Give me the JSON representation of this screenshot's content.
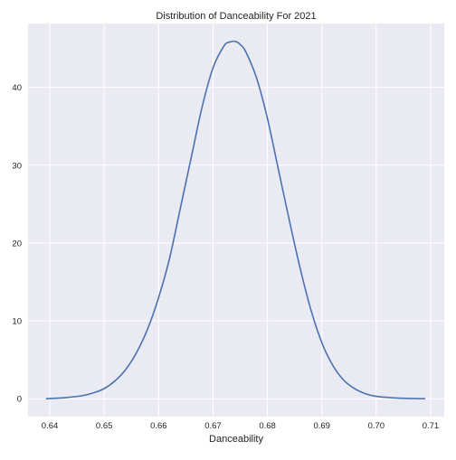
{
  "chart_data": {
    "type": "line",
    "title": "Distribution of Danceability For 2021",
    "xlabel": "Danceability",
    "ylabel": "",
    "xlim": [
      0.636,
      0.7125
    ],
    "ylim": [
      -2.3,
      48.2
    ],
    "x_ticks": [
      "0.64",
      "0.65",
      "0.66",
      "0.67",
      "0.68",
      "0.69",
      "0.70",
      "0.71"
    ],
    "y_ticks": [
      "0",
      "10",
      "20",
      "30",
      "40"
    ],
    "grid": true,
    "legend": "none",
    "colors": {
      "background": "#eaeaf2",
      "grid": "#ffffff",
      "line": "#4c72b0"
    },
    "series": [
      {
        "x": [
          0.6393,
          0.643,
          0.646,
          0.648,
          0.65,
          0.652,
          0.654,
          0.656,
          0.658,
          0.66,
          0.662,
          0.664,
          0.666,
          0.668,
          0.67,
          0.672,
          0.673,
          0.6741,
          0.675,
          0.676,
          0.678,
          0.68,
          0.682,
          0.684,
          0.686,
          0.688,
          0.69,
          0.692,
          0.694,
          0.696,
          0.698,
          0.7,
          0.703,
          0.706,
          0.709
        ],
        "values": [
          0.0,
          0.15,
          0.4,
          0.75,
          1.3,
          2.3,
          3.8,
          6.0,
          9.0,
          13.0,
          18.0,
          24.5,
          31.0,
          37.5,
          42.5,
          45.3,
          45.8,
          45.9,
          45.5,
          44.6,
          41.2,
          36.0,
          29.5,
          23.0,
          16.8,
          11.4,
          7.2,
          4.3,
          2.4,
          1.3,
          0.65,
          0.3,
          0.12,
          0.04,
          0.0
        ]
      }
    ]
  }
}
